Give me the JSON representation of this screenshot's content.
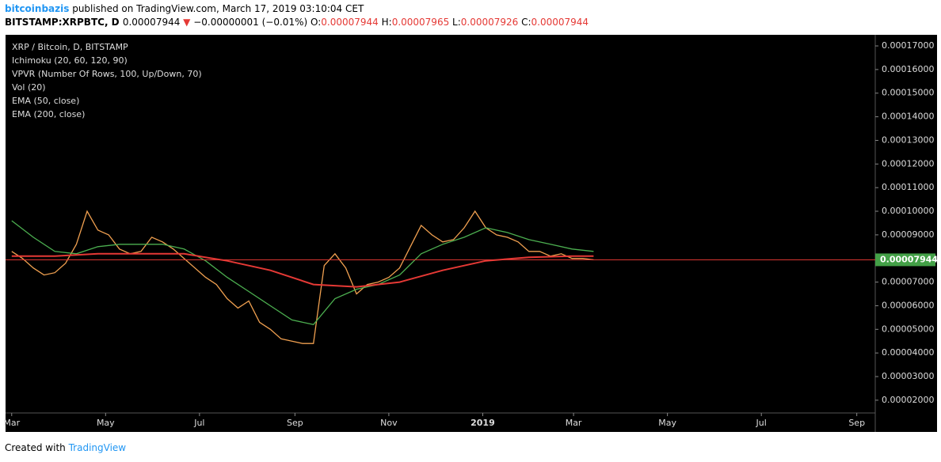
{
  "header": {
    "line1": [
      {
        "text": "bitcoinbazis",
        "color": "#2196f3",
        "bold": true
      },
      {
        "text": " published on TradingView.com, March 17, 2019 03:10:04 CET",
        "color": "#000000"
      }
    ],
    "line2": [
      {
        "text": "BITSTAMP:XRPBTC, D ",
        "color": "#000000",
        "bold": true
      },
      {
        "text": "0.00007944 ",
        "color": "#000000"
      },
      {
        "text": "▼",
        "color": "#e53935"
      },
      {
        "text": " −0.00000001 (−0.01%) ",
        "color": "#000000"
      },
      {
        "text": "O:",
        "color": "#000000"
      },
      {
        "text": "0.00007944 ",
        "color": "#e53935"
      },
      {
        "text": "H:",
        "color": "#000000"
      },
      {
        "text": "0.00007965 ",
        "color": "#e53935"
      },
      {
        "text": "L:",
        "color": "#000000"
      },
      {
        "text": "0.00007926 ",
        "color": "#e53935"
      },
      {
        "text": "C:",
        "color": "#000000"
      },
      {
        "text": "0.00007944",
        "color": "#e53935"
      }
    ],
    "last": "0.00007944"
  },
  "legend_extra": [
    "Ichimoku (20, 60, 120, 90)",
    "VPVR (Number Of Rows, 100, Up/Down, 70)",
    "Vol (20)"
  ],
  "footer": {
    "created": "Created with",
    "brand": "TradingView"
  },
  "chart_data": {
    "type": "line",
    "xlim": [
      -4,
      561
    ],
    "xticks": [
      {
        "value": 0,
        "label": "Mar"
      },
      {
        "value": 61,
        "label": "May"
      },
      {
        "value": 122,
        "label": "Jul"
      },
      {
        "value": 184,
        "label": "Sep"
      },
      {
        "value": 245,
        "label": "Nov"
      },
      {
        "value": 306,
        "label": "2019"
      },
      {
        "value": 365,
        "label": "Mar"
      },
      {
        "value": 426,
        "label": "May"
      },
      {
        "value": 487,
        "label": "Jul"
      },
      {
        "value": 549,
        "label": "Sep"
      }
    ],
    "ylim": [
      1.46e-05,
      0.0001747
    ],
    "yticks": [
      {
        "value": 2e-05,
        "label": "0.00002000"
      },
      {
        "value": 3e-05,
        "label": "0.00003000"
      },
      {
        "value": 4e-05,
        "label": "0.00004000"
      },
      {
        "value": 5e-05,
        "label": "0.00005000"
      },
      {
        "value": 6e-05,
        "label": "0.00006000"
      },
      {
        "value": 7e-05,
        "label": "0.00007000"
      },
      {
        "value": 8e-05,
        "label": "0.00008000"
      },
      {
        "value": 9e-05,
        "label": "0.00009000"
      },
      {
        "value": 0.0001,
        "label": "0.00010000"
      },
      {
        "value": 0.00011,
        "label": "0.00011000"
      },
      {
        "value": 0.00012,
        "label": "0.00012000"
      },
      {
        "value": 0.00013,
        "label": "0.00013000"
      },
      {
        "value": 0.00014,
        "label": "0.00014000"
      },
      {
        "value": 0.00015,
        "label": "0.00015000"
      },
      {
        "value": 0.00016,
        "label": "0.00016000"
      },
      {
        "value": 0.00017,
        "label": "0.00017000"
      }
    ],
    "series": [
      {
        "name": "XRP / Bitcoin, D, BITSTAMP",
        "color": "#f0a050",
        "x": [
          0,
          7,
          14,
          21,
          28,
          35,
          42,
          49,
          56,
          63,
          70,
          77,
          84,
          91,
          98,
          105,
          112,
          119,
          126,
          133,
          140,
          147,
          154,
          161,
          168,
          175,
          182,
          189,
          196,
          203,
          210,
          217,
          224,
          231,
          238,
          245,
          252,
          259,
          266,
          273,
          280,
          287,
          294,
          301,
          308,
          315,
          322,
          329,
          336,
          343,
          350,
          357,
          364,
          371,
          378
        ],
        "values": [
          8.3e-05,
          8e-05,
          7.6e-05,
          7.3e-05,
          7.4e-05,
          7.8e-05,
          8.6e-05,
          0.0001,
          9.2e-05,
          9e-05,
          8.4e-05,
          8.2e-05,
          8.3e-05,
          8.9e-05,
          8.7e-05,
          8.4e-05,
          8e-05,
          7.6e-05,
          7.2e-05,
          6.9e-05,
          6.3e-05,
          5.9e-05,
          6.2e-05,
          5.3e-05,
          5e-05,
          4.6e-05,
          4.5e-05,
          4.4e-05,
          4.4e-05,
          7.7e-05,
          8.2e-05,
          7.6e-05,
          6.5e-05,
          6.9e-05,
          7e-05,
          7.2e-05,
          7.6e-05,
          8.5e-05,
          9.4e-05,
          9e-05,
          8.7e-05,
          8.8e-05,
          9.3e-05,
          0.0001,
          9.3e-05,
          9e-05,
          8.9e-05,
          8.7e-05,
          8.3e-05,
          8.3e-05,
          8.1e-05,
          8.2e-05,
          8e-05,
          8e-05,
          7.944e-05
        ]
      },
      {
        "name": "EMA (50, close)",
        "color": "#4caf50",
        "x": [
          0,
          14,
          28,
          42,
          56,
          70,
          84,
          98,
          112,
          126,
          140,
          154,
          168,
          182,
          196,
          210,
          224,
          238,
          252,
          266,
          280,
          294,
          308,
          322,
          336,
          350,
          364,
          378
        ],
        "values": [
          9.6e-05,
          8.9e-05,
          8.3e-05,
          8.2e-05,
          8.5e-05,
          8.6e-05,
          8.6e-05,
          8.6e-05,
          8.4e-05,
          7.9e-05,
          7.2e-05,
          6.6e-05,
          6e-05,
          5.4e-05,
          5.2e-05,
          6.3e-05,
          6.7e-05,
          6.9e-05,
          7.3e-05,
          8.2e-05,
          8.6e-05,
          8.9e-05,
          9.3e-05,
          9.1e-05,
          8.8e-05,
          8.6e-05,
          8.4e-05,
          8.3e-05
        ]
      },
      {
        "name": "EMA (200, close)",
        "color": "#e53935",
        "x": [
          0,
          28,
          56,
          84,
          112,
          140,
          168,
          196,
          224,
          252,
          280,
          308,
          336,
          364,
          378
        ],
        "values": [
          8.1e-05,
          8.1e-05,
          8.2e-05,
          8.2e-05,
          8.2e-05,
          7.9e-05,
          7.5e-05,
          6.9e-05,
          6.8e-05,
          7e-05,
          7.5e-05,
          7.9e-05,
          8.05e-05,
          8.1e-05,
          8.1e-05
        ]
      }
    ]
  }
}
